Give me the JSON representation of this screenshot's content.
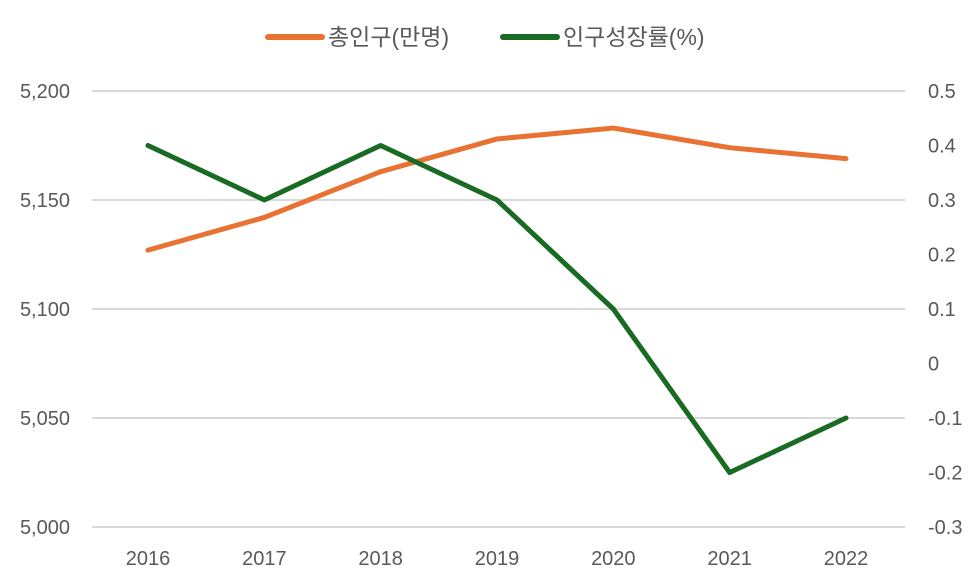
{
  "chart_data": {
    "type": "line",
    "title": "",
    "categories": [
      "2016",
      "2017",
      "2018",
      "2019",
      "2020",
      "2021",
      "2022"
    ],
    "series": [
      {
        "name": "총인구(만명)",
        "axis": "left",
        "color": "#E97132",
        "values": [
          5127,
          5142,
          5163,
          5178,
          5183,
          5174,
          5169
        ]
      },
      {
        "name": "인구성장률(%)",
        "axis": "right",
        "color": "#196B24",
        "values": [
          0.4,
          0.3,
          0.4,
          0.3,
          0.1,
          -0.2,
          -0.1
        ]
      }
    ],
    "y_left": {
      "range": [
        5000,
        5200
      ],
      "ticks": [
        5000,
        5050,
        5100,
        5150,
        5200
      ],
      "tick_labels": [
        "5,000",
        "5,050",
        "5,100",
        "5,150",
        "5,200"
      ]
    },
    "y_right": {
      "range": [
        -0.3,
        0.5
      ],
      "ticks": [
        -0.3,
        -0.2,
        -0.1,
        0,
        0.1,
        0.2,
        0.3,
        0.4,
        0.5
      ],
      "tick_labels": [
        "-0.3",
        "-0.2",
        "-0.1",
        "0",
        "0.1",
        "0.2",
        "0.3",
        "0.4",
        "0.5"
      ]
    },
    "grid": "horizontal",
    "legend_position": "top"
  }
}
